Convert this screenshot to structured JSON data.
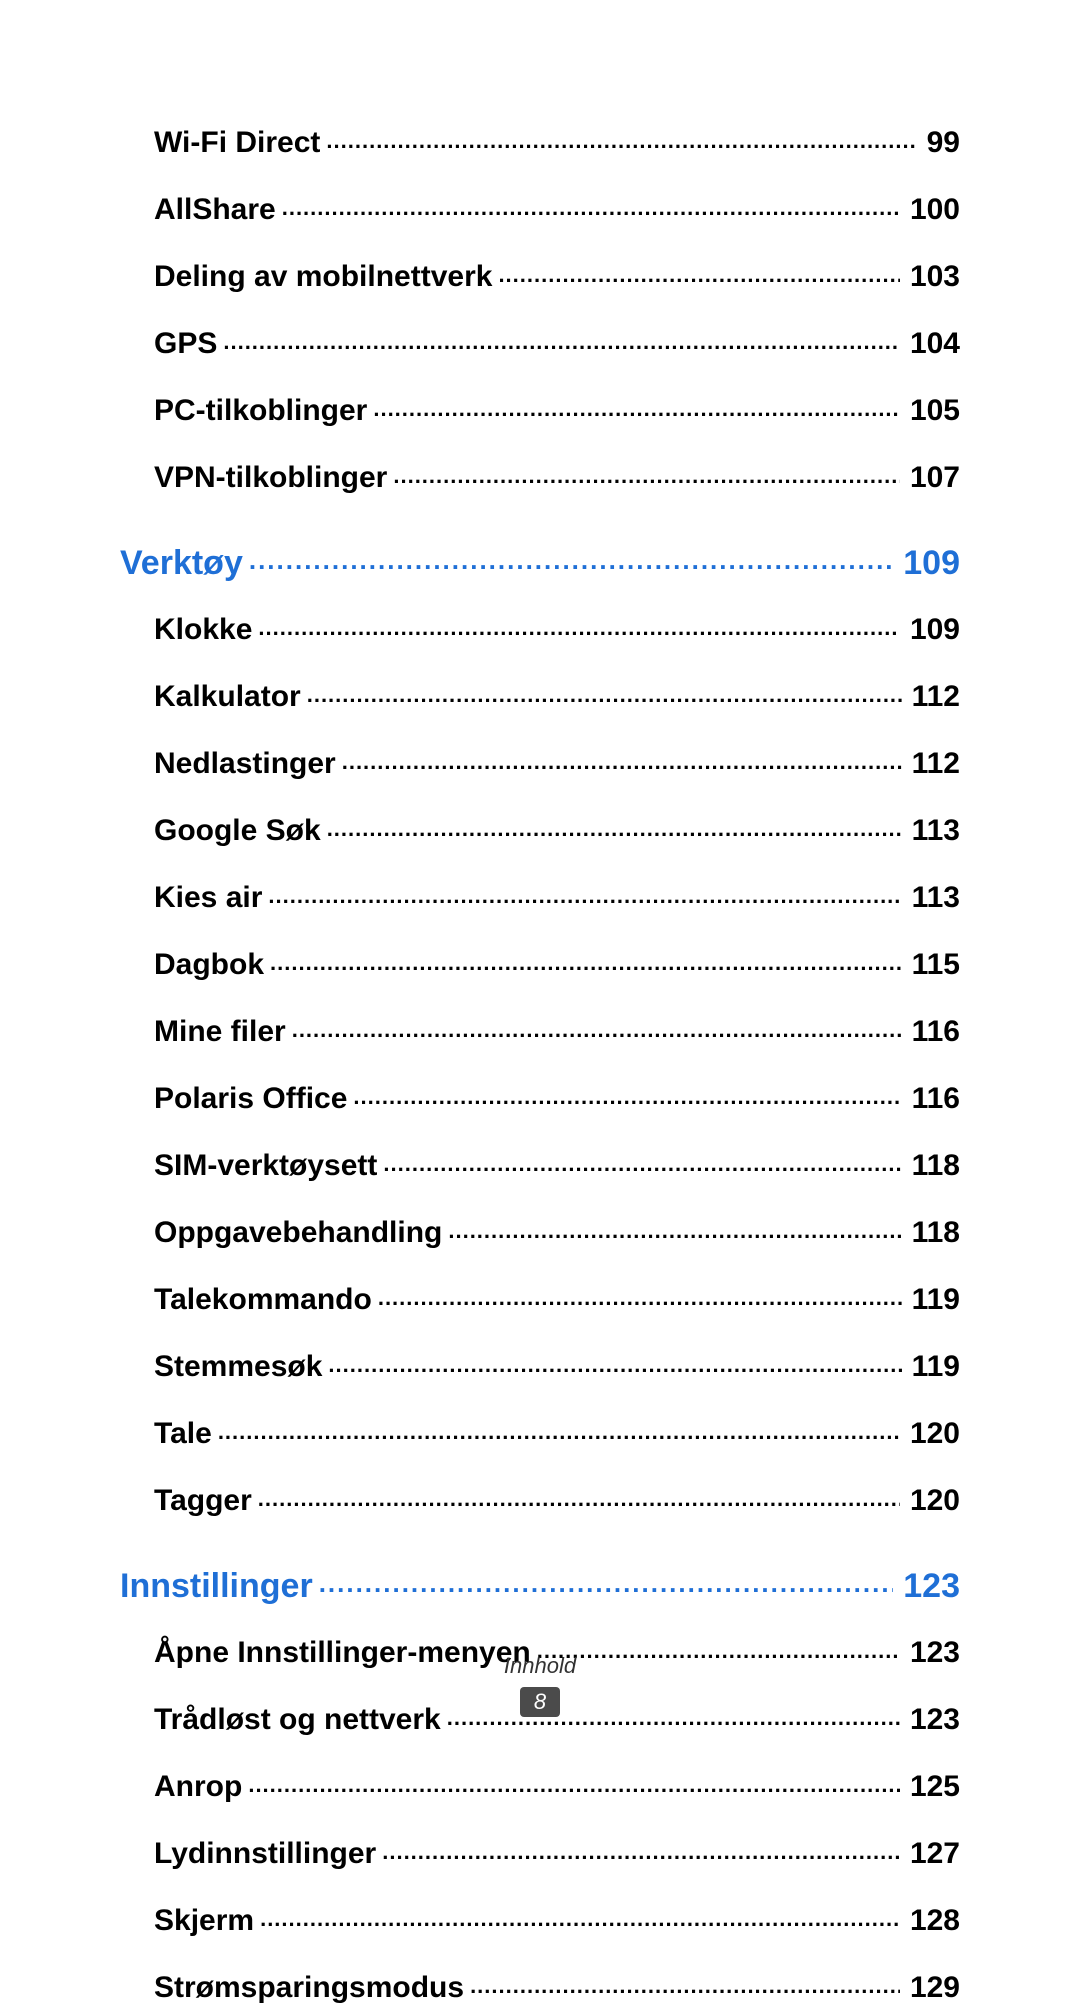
{
  "colors": {
    "section": "#1f6fd6",
    "text": "#000000",
    "badge_bg": "#4b4b4b",
    "badge_fg": "#ffffff",
    "background": "#ffffff"
  },
  "typography": {
    "sub_fontsize": 30,
    "section_fontsize": 34,
    "footer_fontsize": 22
  },
  "pre_items": [
    {
      "label": "Wi-Fi Direct",
      "page": "99"
    },
    {
      "label": "AllShare",
      "page": "100"
    },
    {
      "label": "Deling av mobilnettverk",
      "page": "103"
    },
    {
      "label": "GPS",
      "page": "104"
    },
    {
      "label": "PC-tilkoblinger",
      "page": "105"
    },
    {
      "label": "VPN-tilkoblinger",
      "page": "107"
    }
  ],
  "sections": [
    {
      "title": "Verktøy",
      "page": "109",
      "items": [
        {
          "label": "Klokke",
          "page": "109"
        },
        {
          "label": "Kalkulator",
          "page": "112"
        },
        {
          "label": "Nedlastinger",
          "page": "112"
        },
        {
          "label": "Google Søk",
          "page": "113"
        },
        {
          "label": "Kies air",
          "page": "113"
        },
        {
          "label": "Dagbok",
          "page": "115"
        },
        {
          "label": "Mine filer",
          "page": "116"
        },
        {
          "label": "Polaris Office",
          "page": "116"
        },
        {
          "label": "SIM-verktøysett",
          "page": "118"
        },
        {
          "label": "Oppgavebehandling",
          "page": "118"
        },
        {
          "label": "Talekommando",
          "page": "119"
        },
        {
          "label": "Stemmesøk",
          "page": "119"
        },
        {
          "label": "Tale",
          "page": "120"
        },
        {
          "label": "Tagger",
          "page": "120"
        }
      ]
    },
    {
      "title": "Innstillinger",
      "page": "123",
      "items": [
        {
          "label": "Åpne Innstillinger-menyen",
          "page": "123"
        },
        {
          "label": "Trådløst og nettverk",
          "page": "123"
        },
        {
          "label": "Anrop",
          "page": "125"
        },
        {
          "label": "Lydinnstillinger",
          "page": "127"
        },
        {
          "label": "Skjerm",
          "page": "128"
        },
        {
          "label": "Strømsparingsmodus",
          "page": "129"
        }
      ]
    }
  ],
  "footer": {
    "title": "Innhold",
    "page_number": "8"
  }
}
